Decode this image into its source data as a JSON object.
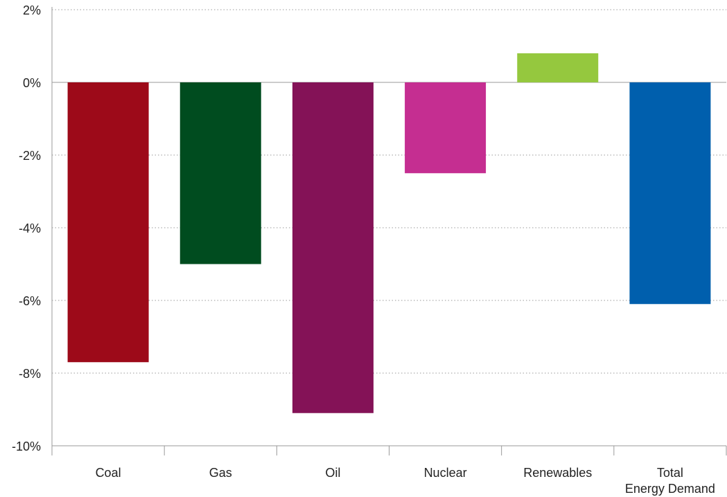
{
  "chart_data": {
    "type": "bar",
    "title": "",
    "xlabel": "",
    "ylabel": "",
    "ylim": [
      -10,
      2
    ],
    "yticks": [
      2,
      0,
      -2,
      -4,
      -6,
      -8,
      -10
    ],
    "ytick_labels": [
      "2%",
      "0%",
      "-2%",
      "-4%",
      "-6%",
      "-8%",
      "-10%"
    ],
    "grid": true,
    "categories": [
      [
        "Coal"
      ],
      [
        "Gas"
      ],
      [
        "Oil"
      ],
      [
        "Nuclear"
      ],
      [
        "Renewables"
      ],
      [
        "Total",
        "Energy Demand"
      ]
    ],
    "values": [
      -7.7,
      -5.0,
      -9.1,
      -2.5,
      0.8,
      -6.1
    ],
    "colors": [
      "#9d0a19",
      "#004c1f",
      "#841257",
      "#c52e91",
      "#95c83e",
      "#005fad"
    ]
  }
}
